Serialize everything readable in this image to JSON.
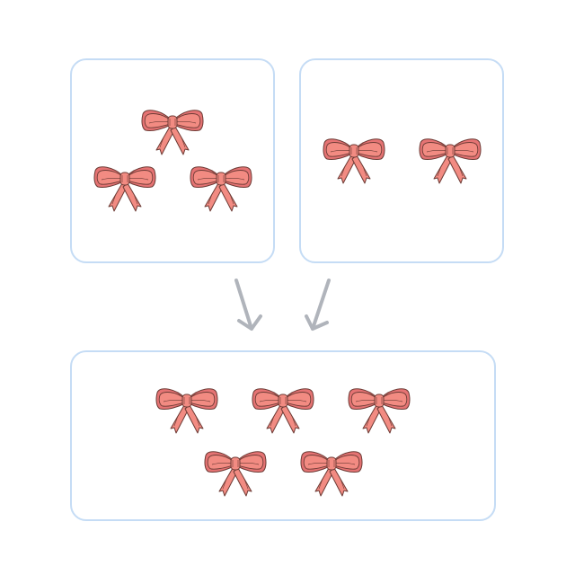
{
  "diagram": {
    "icon": "bow-icon",
    "colors": {
      "box_border": "#c5dcf5",
      "bow_fill": "#f28b82",
      "bow_fill_dark": "#e57373",
      "bow_stroke": "#6d3b35",
      "arrow": "#b0b4bb"
    },
    "groups": [
      {
        "name": "left-group",
        "count": 3
      },
      {
        "name": "right-group",
        "count": 2
      },
      {
        "name": "combined-group",
        "count": 5
      }
    ]
  }
}
